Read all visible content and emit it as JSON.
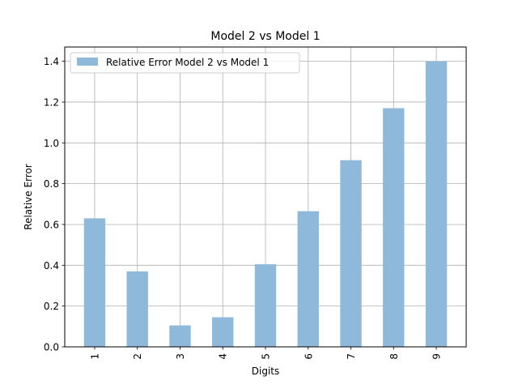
{
  "chart_data": {
    "type": "bar",
    "title": "Model 2 vs Model 1",
    "xlabel": "Digits",
    "ylabel": "Relative Error",
    "categories": [
      "1",
      "2",
      "3",
      "4",
      "5",
      "6",
      "7",
      "8",
      "9"
    ],
    "series": [
      {
        "name": "Relative Error Model 2 vs Model 1",
        "values": [
          0.63,
          0.37,
          0.105,
          0.145,
          0.405,
          0.665,
          0.915,
          1.17,
          1.4
        ],
        "color": "#8fb9da"
      }
    ],
    "ylim": [
      0,
      1.47
    ],
    "yticks": [
      "0.0",
      "0.2",
      "0.4",
      "0.6",
      "0.8",
      "1.0",
      "1.2",
      "1.4"
    ],
    "grid": true,
    "legend_position": "top-left",
    "x_tick_rotation": "vertical"
  }
}
